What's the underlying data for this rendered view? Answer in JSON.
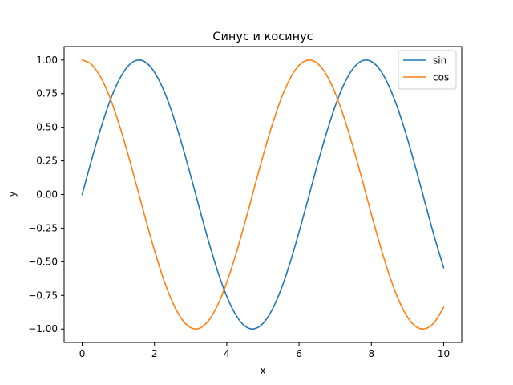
{
  "chart_data": {
    "type": "line",
    "title": "Синус и косинус",
    "xlabel": "x",
    "ylabel": "y",
    "xlim": [
      -0.5,
      10.5
    ],
    "ylim": [
      -1.1,
      1.1
    ],
    "xticks": [
      0,
      2,
      4,
      6,
      8,
      10
    ],
    "xtick_labels": [
      "0",
      "2",
      "4",
      "6",
      "8",
      "10"
    ],
    "yticks": [
      1.0,
      0.75,
      0.5,
      0.25,
      0.0,
      -0.25,
      -0.5,
      -0.75,
      -1.0
    ],
    "ytick_labels": [
      "1.00",
      "0.75",
      "0.50",
      "0.25",
      "0.00",
      "−0.25",
      "−0.50",
      "−0.75",
      "−1.00"
    ],
    "grid": false,
    "legend_position": "top-right",
    "x": [
      0,
      0.25,
      0.5,
      0.75,
      1,
      1.25,
      1.5,
      1.75,
      2,
      2.25,
      2.5,
      2.75,
      3,
      3.25,
      3.5,
      3.75,
      4,
      4.25,
      4.5,
      4.75,
      5,
      5.25,
      5.5,
      5.75,
      6,
      6.25,
      6.5,
      6.75,
      7,
      7.25,
      7.5,
      7.75,
      8,
      8.25,
      8.5,
      8.75,
      9,
      9.25,
      9.5,
      9.75,
      10
    ],
    "series": [
      {
        "name": "sin",
        "color": "#1f77b4",
        "values": [
          0,
          0.247,
          0.479,
          0.682,
          0.841,
          0.949,
          0.997,
          0.984,
          0.909,
          0.778,
          0.598,
          0.382,
          0.141,
          -0.108,
          -0.351,
          -0.572,
          -0.757,
          -0.895,
          -0.978,
          -0.999,
          -0.959,
          -0.859,
          -0.706,
          -0.508,
          -0.279,
          -0.033,
          0.215,
          0.45,
          0.657,
          0.823,
          0.938,
          0.995,
          0.989,
          0.923,
          0.798,
          0.625,
          0.412,
          0.174,
          -0.075,
          -0.32,
          -0.544
        ]
      },
      {
        "name": "cos",
        "color": "#ff7f0e",
        "values": [
          1,
          0.969,
          0.878,
          0.732,
          0.54,
          0.315,
          0.071,
          -0.178,
          -0.416,
          -0.628,
          -0.801,
          -0.924,
          -0.99,
          -0.994,
          -0.936,
          -0.821,
          -0.654,
          -0.446,
          -0.211,
          0.037,
          0.284,
          0.512,
          0.709,
          0.861,
          0.96,
          0.999,
          0.977,
          0.893,
          0.754,
          0.568,
          0.347,
          0.105,
          -0.146,
          -0.385,
          -0.602,
          -0.781,
          -0.911,
          -0.985,
          -0.997,
          -0.948,
          -0.839
        ]
      }
    ]
  }
}
